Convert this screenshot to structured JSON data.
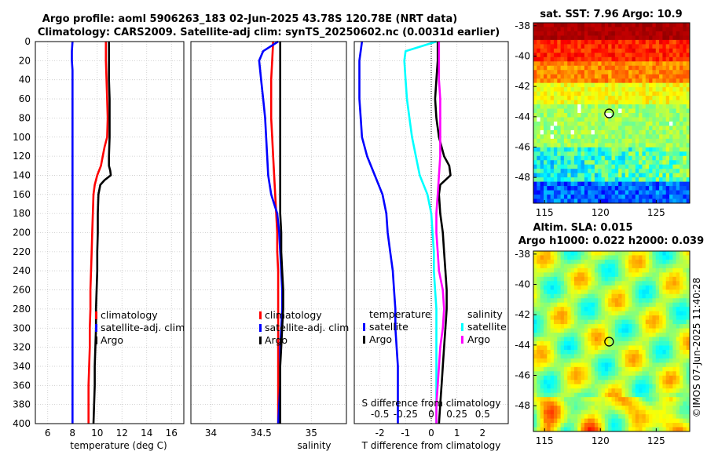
{
  "figure": {
    "title_line1": "Argo profile: aoml 5906263_183 02-Jun-2025 43.78S 120.78E (NRT data)",
    "title_line2": "Climatology: CARS2009. Satellite-adj clim: synTS_20250602.nc (0.0031d earlier)",
    "sst_title": "sat. SST: 7.96 Argo: 10.9",
    "sla_title1": "Altim. SLA: 0.015",
    "sla_title2": "Argo h1000: 0.022 h2000: 0.039",
    "stamp": "©IMOS 07-Jun-2025 11:40:28"
  },
  "colors": {
    "climatology": "#ff0000",
    "satellite": "#0000ff",
    "argo": "#000000",
    "sal_satellite": "#00ffff",
    "sal_argo": "#ff00ff",
    "grid": "#c8c8c8"
  },
  "chart_data": [
    {
      "type": "line",
      "id": "temperature",
      "xlabel": "temperature (deg C)",
      "ylabel": "",
      "xlim": [
        5,
        17
      ],
      "ylim": [
        400,
        0
      ],
      "x_ticks": [
        "6",
        "8",
        "10",
        "12",
        "14",
        "16"
      ],
      "x_tick_values": [
        6,
        8,
        10,
        12,
        14,
        16
      ],
      "y_ticks": [
        "0",
        "20",
        "40",
        "60",
        "80",
        "100",
        "120",
        "140",
        "160",
        "180",
        "200",
        "220",
        "240",
        "260",
        "280",
        "300",
        "320",
        "340",
        "360",
        "380",
        "400"
      ],
      "y_tick_values": [
        0,
        20,
        40,
        60,
        80,
        100,
        120,
        140,
        160,
        180,
        200,
        220,
        240,
        260,
        280,
        300,
        320,
        340,
        360,
        380,
        400
      ],
      "grid": true,
      "legend": [
        "climatology",
        "satellite-adj. clim",
        "Argo"
      ],
      "series": [
        {
          "name": "climatology",
          "color_key": "climatology",
          "x": [
            10.7,
            10.7,
            10.75,
            10.8,
            10.85,
            10.8,
            10.6,
            10.45,
            10.3,
            10.0,
            9.8,
            9.7,
            9.65,
            9.6,
            9.55,
            9.5,
            9.45,
            9.45,
            9.4,
            9.4,
            9.35,
            9.3,
            9.3,
            9.3
          ],
          "y": [
            0,
            20,
            40,
            60,
            80,
            100,
            110,
            120,
            130,
            140,
            150,
            160,
            180,
            200,
            220,
            240,
            260,
            280,
            300,
            320,
            340,
            360,
            380,
            400
          ]
        },
        {
          "name": "satellite-adj. clim",
          "color_key": "satellite",
          "x": [
            8.0,
            7.95,
            7.95,
            8.0,
            8.0,
            8.0,
            8.0,
            8.0,
            8.0,
            8.0,
            8.0,
            8.0,
            8.0
          ],
          "y": [
            0,
            10,
            20,
            30,
            40,
            60,
            100,
            160,
            200,
            250,
            300,
            350,
            400
          ]
        },
        {
          "name": "Argo",
          "color_key": "argo",
          "x": [
            10.95,
            10.95,
            10.95,
            11.0,
            11.0,
            11.0,
            10.95,
            10.95,
            11.05,
            11.1,
            10.6,
            10.25,
            10.1,
            10.05,
            10.05,
            10.0,
            10.0,
            9.95,
            9.9,
            9.9,
            9.85,
            9.8,
            9.8,
            9.75,
            9.7
          ],
          "y": [
            0,
            20,
            40,
            60,
            80,
            100,
            120,
            130,
            135,
            140,
            145,
            150,
            160,
            180,
            200,
            220,
            240,
            260,
            280,
            300,
            320,
            340,
            360,
            380,
            400
          ]
        }
      ]
    },
    {
      "type": "line",
      "id": "salinity",
      "xlabel": "salinity",
      "ylabel": "",
      "xlim": [
        33.8,
        35.35
      ],
      "ylim": [
        400,
        0
      ],
      "x_ticks": [
        "34",
        "34.5",
        "35"
      ],
      "x_tick_values": [
        34,
        34.5,
        35
      ],
      "grid": true,
      "legend": [
        "climatology",
        "satellite-adj. clim",
        "Argo"
      ],
      "series": [
        {
          "name": "climatology",
          "color_key": "climatology",
          "x": [
            34.62,
            34.61,
            34.6,
            34.6,
            34.6,
            34.61,
            34.62,
            34.63,
            34.64,
            34.65,
            34.66,
            34.66,
            34.67,
            34.67,
            34.67,
            34.67,
            34.67,
            34.67,
            34.67,
            34.67,
            34.67
          ],
          "y": [
            0,
            20,
            40,
            60,
            80,
            100,
            120,
            140,
            160,
            180,
            200,
            220,
            240,
            260,
            280,
            300,
            320,
            340,
            360,
            380,
            400
          ]
        },
        {
          "name": "satellite-adj. clim",
          "color_key": "satellite",
          "x": [
            34.67,
            34.52,
            34.48,
            34.5,
            34.52,
            34.54,
            34.55,
            34.56,
            34.57,
            34.6,
            34.63,
            34.66,
            34.68,
            34.69,
            34.7,
            34.71,
            34.71,
            34.7,
            34.69,
            34.69,
            34.69,
            34.68,
            34.67
          ],
          "y": [
            0,
            10,
            20,
            40,
            60,
            80,
            100,
            120,
            140,
            160,
            170,
            180,
            200,
            220,
            240,
            260,
            280,
            300,
            320,
            340,
            360,
            380,
            400
          ]
        },
        {
          "name": "Argo",
          "color_key": "argo",
          "x": [
            34.69,
            34.69,
            34.69,
            34.69,
            34.69,
            34.69,
            34.69,
            34.69,
            34.69,
            34.69,
            34.7,
            34.7,
            34.71,
            34.72,
            34.72,
            34.71,
            34.7,
            34.69,
            34.69,
            34.69,
            34.69
          ],
          "y": [
            0,
            20,
            40,
            60,
            80,
            100,
            120,
            140,
            160,
            180,
            200,
            220,
            240,
            260,
            280,
            300,
            320,
            340,
            360,
            380,
            400
          ]
        }
      ]
    },
    {
      "type": "line",
      "id": "difference",
      "xlabel": "T difference from climatology",
      "ylabel": "",
      "xlim": [
        -3,
        3
      ],
      "ylim": [
        400,
        0
      ],
      "x_ticks": [
        "-2",
        "-1",
        "0",
        "1",
        "2"
      ],
      "x_tick_values": [
        -2,
        -1,
        0,
        1,
        2
      ],
      "top_label": "S difference from climatology",
      "s_ticks": [
        "-0.5",
        "-0.25",
        "0",
        "0.25",
        "0.5"
      ],
      "s_tick_values": [
        -0.5,
        -0.25,
        0,
        0.25,
        0.5
      ],
      "s_scale": 4,
      "grid": true,
      "legend_headers": [
        "temperature",
        "salinity"
      ],
      "legend_left": [
        "satellite",
        "Argo"
      ],
      "legend_right": [
        "satellite",
        "Argo"
      ],
      "series": [
        {
          "name": "temperature satellite",
          "color_key": "satellite",
          "x": [
            -2.7,
            -2.8,
            -2.8,
            -2.8,
            -2.75,
            -2.7,
            -2.5,
            -2.2,
            -1.9,
            -1.75,
            -1.7,
            -1.6,
            -1.5,
            -1.45,
            -1.4,
            -1.4,
            -1.35,
            -1.3,
            -1.3,
            -1.3,
            -1.3
          ],
          "y": [
            0,
            20,
            40,
            60,
            80,
            100,
            120,
            140,
            160,
            180,
            200,
            220,
            240,
            260,
            280,
            300,
            320,
            340,
            360,
            380,
            400
          ]
        },
        {
          "name": "temperature Argo",
          "color_key": "argo",
          "x": [
            0.25,
            0.25,
            0.2,
            0.15,
            0.2,
            0.3,
            0.5,
            0.7,
            0.75,
            0.35,
            0.3,
            0.35,
            0.45,
            0.5,
            0.55,
            0.6,
            0.6,
            0.55,
            0.5,
            0.45,
            0.4,
            0.35,
            0.3,
            0.3
          ],
          "y": [
            0,
            20,
            40,
            60,
            80,
            100,
            120,
            130,
            140,
            150,
            160,
            180,
            200,
            220,
            240,
            260,
            280,
            300,
            320,
            340,
            360,
            380,
            400,
            400
          ]
        },
        {
          "name": "salinity satellite",
          "color_key": "sal_satellite",
          "x": [
            0.2,
            -1.0,
            -1.05,
            -1.0,
            -0.95,
            -0.85,
            -0.75,
            -0.6,
            -0.45,
            -0.15,
            0.0,
            0.05,
            0.1,
            0.1,
            0.15,
            0.2,
            0.2,
            0.2,
            0.2,
            0.2,
            0.2
          ],
          "y": [
            0,
            10,
            20,
            40,
            60,
            80,
            100,
            120,
            140,
            160,
            180,
            200,
            220,
            240,
            260,
            280,
            300,
            320,
            340,
            360,
            400
          ]
        },
        {
          "name": "salinity Argo",
          "color_key": "sal_argo",
          "x": [
            0.3,
            0.3,
            0.3,
            0.35,
            0.35,
            0.35,
            0.35,
            0.3,
            0.25,
            0.2,
            0.2,
            0.25,
            0.3,
            0.45,
            0.5,
            0.45,
            0.35,
            0.3,
            0.25,
            0.2,
            0.2
          ],
          "y": [
            0,
            20,
            40,
            60,
            80,
            100,
            120,
            140,
            160,
            180,
            200,
            220,
            240,
            260,
            280,
            300,
            320,
            340,
            360,
            380,
            400
          ]
        }
      ]
    },
    {
      "type": "heatmap",
      "id": "sst_map",
      "title": "sat. SST: 7.96 Argo: 10.9",
      "xlim": [
        114,
        128
      ],
      "ylim": [
        -49.7,
        -37.8
      ],
      "x_ticks": [
        "115",
        "120",
        "125"
      ],
      "x_tick_values": [
        115,
        120,
        125
      ],
      "y_ticks": [
        "-38",
        "-40",
        "-42",
        "-44",
        "-46",
        "-48"
      ],
      "y_tick_values": [
        -38,
        -40,
        -42,
        -44,
        -46,
        -48
      ],
      "marker": {
        "lon": 120.78,
        "lat": -43.78
      }
    },
    {
      "type": "heatmap",
      "id": "sla_map",
      "title": "Altim. SLA: 0.015",
      "xlim": [
        114,
        128
      ],
      "ylim": [
        -49.7,
        -37.8
      ],
      "x_ticks": [
        "115",
        "120",
        "125"
      ],
      "x_tick_values": [
        115,
        120,
        125
      ],
      "y_ticks": [
        "-38",
        "-40",
        "-42",
        "-44",
        "-46",
        "-48"
      ],
      "y_tick_values": [
        -38,
        -40,
        -42,
        -44,
        -46,
        -48
      ],
      "marker": {
        "lon": 120.78,
        "lat": -43.78
      }
    }
  ]
}
